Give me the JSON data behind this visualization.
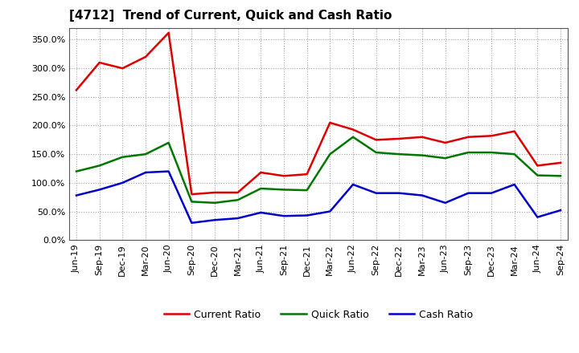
{
  "title": "[4712]  Trend of Current, Quick and Cash Ratio",
  "x_labels": [
    "Jun-19",
    "Sep-19",
    "Dec-19",
    "Mar-20",
    "Jun-20",
    "Sep-20",
    "Dec-20",
    "Mar-21",
    "Jun-21",
    "Sep-21",
    "Dec-21",
    "Mar-22",
    "Jun-22",
    "Sep-22",
    "Dec-22",
    "Mar-23",
    "Jun-23",
    "Sep-23",
    "Dec-23",
    "Mar-24",
    "Jun-24",
    "Sep-24"
  ],
  "current_ratio": [
    262,
    310,
    300,
    320,
    362,
    80,
    83,
    83,
    118,
    112,
    115,
    205,
    193,
    175,
    177,
    180,
    170,
    180,
    182,
    190,
    130,
    135
  ],
  "quick_ratio": [
    120,
    130,
    145,
    150,
    170,
    67,
    65,
    70,
    90,
    88,
    87,
    150,
    180,
    153,
    150,
    148,
    143,
    153,
    153,
    150,
    113,
    112
  ],
  "cash_ratio": [
    78,
    88,
    100,
    118,
    120,
    30,
    35,
    38,
    48,
    42,
    43,
    50,
    97,
    82,
    82,
    78,
    65,
    82,
    82,
    97,
    40,
    52
  ],
  "current_color": "#dd0000",
  "quick_color": "#007700",
  "cash_color": "#0000cc",
  "ylim": [
    0,
    370
  ],
  "yticks": [
    0,
    50,
    100,
    150,
    200,
    250,
    300,
    350
  ],
  "legend_labels": [
    "Current Ratio",
    "Quick Ratio",
    "Cash Ratio"
  ],
  "bg_color": "#ffffff",
  "grid_color": "#999999",
  "line_width": 1.8,
  "title_fontsize": 11,
  "tick_fontsize": 8,
  "legend_fontsize": 9
}
